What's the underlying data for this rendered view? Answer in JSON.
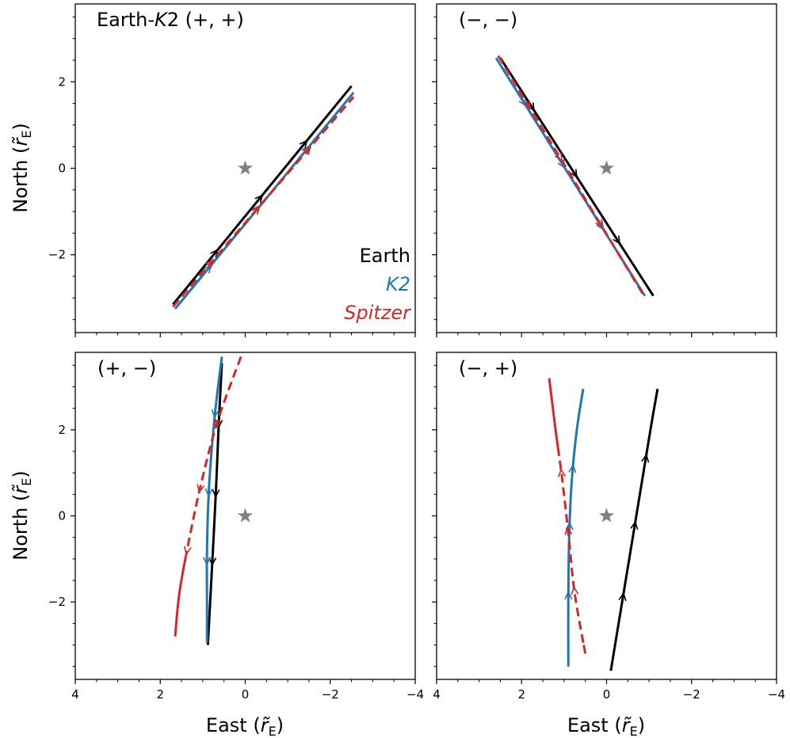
{
  "colors": {
    "earth": "#000000",
    "k2": "#1f77b4",
    "spitzer": "#d62728",
    "star": "#808080"
  },
  "legend": [
    {
      "text": "Earth",
      "color": "#000000",
      "italic": false
    },
    {
      "text": "K2",
      "color": "#1f77b4",
      "italic": true
    },
    {
      "text": "Spitzer",
      "color": "#d62728",
      "italic": true
    }
  ],
  "axes": {
    "xlabel": "East (r̃E)",
    "ylabel": "North (r̃E)",
    "xlabel_parts": {
      "main": "East (",
      "symbol": "r̃",
      "sub": "E",
      "close": ")"
    },
    "ylabel_parts": {
      "main": "North (",
      "symbol": "r̃",
      "sub": "E",
      "close": ")"
    },
    "xlim": [
      4,
      -4
    ],
    "ylim": [
      -3.8,
      3.8
    ],
    "xticks": [
      4,
      2,
      0,
      -2,
      -4
    ],
    "xtick_labels": [
      "4",
      "2",
      "0",
      "−2",
      "−4"
    ],
    "yticks": [
      2,
      0,
      -2
    ],
    "ytick_labels": [
      "2",
      "0",
      "−2"
    ]
  },
  "chart_data": [
    {
      "type": "line",
      "title": "Earth-K2 (+, +)",
      "title_parts": [
        "Earth-",
        "K",
        "2 (+, +)"
      ],
      "series": [
        {
          "name": "Earth",
          "color": "#000000",
          "style": "solid",
          "x": [
            1.7,
            -2.5
          ],
          "y": [
            -3.15,
            1.9
          ],
          "arrows": [
            0.25,
            0.5,
            0.75
          ],
          "arrow_dir": 1
        },
        {
          "name": "K2",
          "color": "#1f77b4",
          "style": "solid",
          "x": [
            1.65,
            -2.55
          ],
          "y": [
            -3.25,
            1.75
          ],
          "arrows": [
            0.2,
            0.47,
            0.75
          ],
          "arrow_dir": 1
        },
        {
          "name": "Spitzer",
          "color": "#d62728",
          "style": "dashed",
          "x": [
            1.7,
            -2.55
          ],
          "y": [
            -3.2,
            1.65
          ],
          "arrows": [
            0.22,
            0.48,
            0.76
          ],
          "arrow_dir": 1
        }
      ],
      "star": {
        "x": 0,
        "y": 0
      },
      "legend_visible": true
    },
    {
      "type": "line",
      "title": "(−, −)",
      "title_parts": [
        "(−, −)"
      ],
      "series": [
        {
          "name": "Earth",
          "color": "#000000",
          "style": "solid",
          "x": [
            2.5,
            -1.1
          ],
          "y": [
            2.55,
            -2.95
          ],
          "arrows": [
            0.22,
            0.5,
            0.78
          ],
          "arrow_dir": 1
        },
        {
          "name": "K2",
          "color": "#1f77b4",
          "style": "solid",
          "x": [
            2.6,
            -0.9
          ],
          "y": [
            2.55,
            -2.95
          ],
          "arrows": [
            0.2,
            0.46,
            0.72
          ],
          "arrow_dir": 1
        },
        {
          "name": "Spitzer",
          "color": "#d62728",
          "style": "dashed",
          "x": [
            2.55,
            -0.85
          ],
          "y": [
            2.6,
            -2.9
          ],
          "arrows": [
            0.22,
            0.44,
            0.72
          ],
          "arrow_dir": 1
        }
      ],
      "star": {
        "x": 0,
        "y": 0
      },
      "legend_visible": false
    },
    {
      "type": "line",
      "title": "(+, −)",
      "title_parts": [
        "(+, −)"
      ],
      "series": [
        {
          "name": "Earth",
          "color": "#000000",
          "style": "solid",
          "x": [
            0.55,
            0.62,
            0.68,
            0.75,
            0.82,
            0.88
          ],
          "y": [
            3.55,
            2.2,
            0.8,
            -0.6,
            -1.9,
            -3.0
          ],
          "arrows": [
            0.22,
            0.45,
            0.68
          ],
          "arrow_dir": 1
        },
        {
          "name": "K2",
          "color": "#1f77b4",
          "style": "solid",
          "x": [
            0.55,
            0.72,
            0.85,
            0.9,
            0.9,
            0.9
          ],
          "y": [
            3.7,
            2.3,
            0.7,
            -0.8,
            -2.0,
            -2.95
          ],
          "arrows": [
            0.2,
            0.43,
            0.65
          ],
          "arrow_dir": 1
        },
        {
          "name": "Spitzer",
          "color": "#d62728",
          "style": "dashed",
          "x": [
            0.1,
            0.65,
            1.05,
            1.35,
            1.55,
            1.65
          ],
          "y": [
            3.7,
            2.2,
            0.7,
            -0.7,
            -1.8,
            -2.8
          ],
          "arrows": [
            0.22,
            0.42,
            0.63
          ],
          "arrow_dir": 1,
          "solid_tail_from": 0.64
        }
      ],
      "star": {
        "x": 0,
        "y": 0
      },
      "legend_visible": false
    },
    {
      "type": "line",
      "title": "(−, +)",
      "title_parts": [
        "(−, +)"
      ],
      "series": [
        {
          "name": "Earth",
          "color": "#000000",
          "style": "solid",
          "x": [
            -0.1,
            -0.35,
            -0.6,
            -0.85,
            -1.05,
            -1.2
          ],
          "y": [
            -3.6,
            -2.1,
            -0.6,
            0.9,
            2.1,
            2.95
          ],
          "arrows": [
            0.24,
            0.46,
            0.68
          ],
          "arrow_dir": 1
        },
        {
          "name": "K2",
          "color": "#1f77b4",
          "style": "solid",
          "x": [
            0.9,
            0.9,
            0.88,
            0.82,
            0.7,
            0.55
          ],
          "y": [
            -3.5,
            -2.0,
            -0.5,
            0.8,
            2.0,
            2.95
          ],
          "arrows": [
            0.23,
            0.45,
            0.66
          ],
          "arrow_dir": 1
        },
        {
          "name": "Spitzer",
          "color": "#d62728",
          "style": "dashed",
          "x": [
            0.5,
            0.75,
            0.9,
            1.05,
            1.2,
            1.35
          ],
          "y": [
            -3.2,
            -1.8,
            -0.4,
            0.9,
            2.0,
            3.2
          ],
          "arrows": [
            0.22,
            0.42,
            0.63
          ],
          "arrow_dir": 1,
          "solid_tail_to": 0.72
        }
      ],
      "star": {
        "x": 0,
        "y": 0
      },
      "legend_visible": false
    }
  ]
}
